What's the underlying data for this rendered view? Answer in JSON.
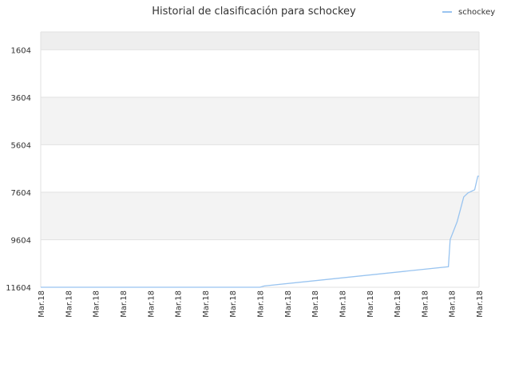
{
  "chart_data": {
    "type": "line",
    "title": "Historial de clasificación para schockey",
    "xlabel": "",
    "ylabel": "",
    "y_inverted": true,
    "ylim": [
      11604,
      854
    ],
    "y_ticks": [
      1604,
      3604,
      5604,
      7604,
      9604,
      11604
    ],
    "y_tick_labels": [
      "1604",
      "3604",
      "5604",
      "7604",
      "9604",
      "11604"
    ],
    "x_tick_labels": [
      "Mar.18",
      "Mar.18",
      "Mar.18",
      "Mar.18",
      "Mar.18",
      "Mar.18",
      "Mar.18",
      "Mar.18",
      "Mar.18",
      "Mar.18",
      "Mar.18",
      "Mar.18",
      "Mar.18",
      "Mar.18",
      "Mar.18",
      "Mar.18",
      "Mar.18"
    ],
    "grid": true,
    "legend_position": "top-right",
    "series": [
      {
        "name": "schockey",
        "color": "#99c4f0",
        "x": [
          0,
          0.5,
          0.51,
          0.93,
          0.934,
          0.95,
          0.958,
          0.965,
          0.975,
          0.99,
          0.997,
          1.0
        ],
        "y": [
          11604,
          11604,
          11550,
          10740,
          9600,
          8850,
          8300,
          7800,
          7630,
          7500,
          6930,
          6930
        ]
      }
    ]
  }
}
